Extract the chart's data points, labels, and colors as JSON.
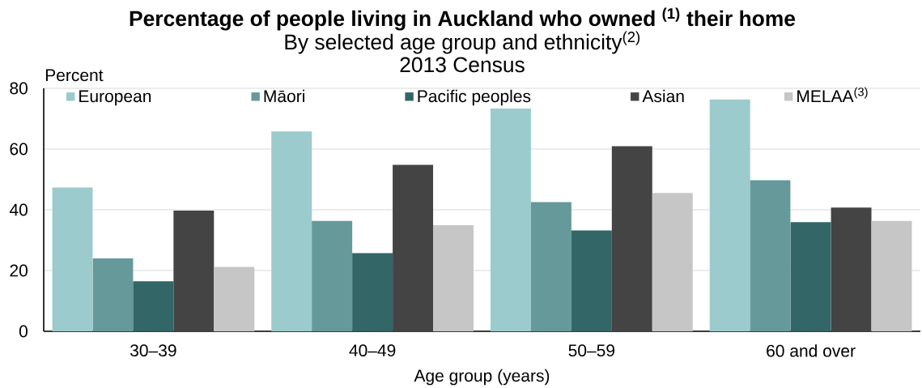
{
  "chart_data": {
    "type": "bar",
    "title": "Percentage of people living in Auckland who owned $^{(1)}$ their home",
    "subtitle": "By selected age group and ethnicity$^{(2)}$",
    "annotations": [
      "2013 Census"
    ],
    "xlabel": "Age group (years)",
    "ylabel": "Percent",
    "categories": [
      "30–39",
      "40–49",
      "50–59",
      "60 and over"
    ],
    "series": [
      {
        "name": "European",
        "color": "#9bcbcc",
        "values": [
          47.3,
          65.8,
          73.3,
          76.3
        ]
      },
      {
        "name": "Māori",
        "color": "#669999",
        "values": [
          24.0,
          36.3,
          42.5,
          49.7
        ]
      },
      {
        "name": "Pacific peoples",
        "color": "#336666",
        "values": [
          16.5,
          25.7,
          33.2,
          35.9
        ]
      },
      {
        "name": "Asian",
        "color": "#444444",
        "values": [
          39.7,
          54.8,
          60.9,
          40.7
        ]
      },
      {
        "name": "MELAA$^{(3)}$",
        "color": "#c6c6c6",
        "values": [
          21.2,
          34.9,
          45.5,
          36.3
        ]
      }
    ],
    "ylim": [
      0,
      80
    ],
    "yticks": [
      0,
      20,
      40,
      60,
      80
    ],
    "grid": "y",
    "legend": "top"
  }
}
